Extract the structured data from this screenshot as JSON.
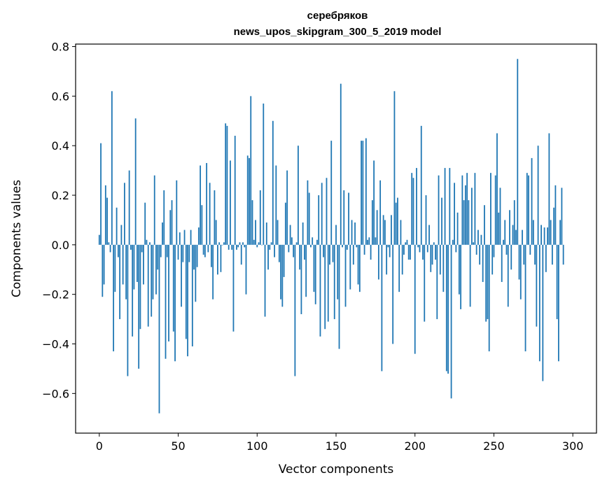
{
  "chart_data": {
    "type": "bar",
    "title": "серебряков",
    "subtitle": "news_upos_skipgram_300_5_2019 model",
    "xlabel": "Vector components",
    "ylabel": "Components values",
    "xlim": [
      -15,
      315
    ],
    "ylim": [
      -0.76,
      0.81
    ],
    "xticks": [
      0,
      50,
      100,
      150,
      200,
      250,
      300
    ],
    "xtick_labels": [
      "0",
      "50",
      "100",
      "150",
      "200",
      "250",
      "300"
    ],
    "yticks": [
      -0.6,
      -0.4,
      -0.2,
      0.0,
      0.2,
      0.4,
      0.6,
      0.8
    ],
    "ytick_labels": [
      "−0.6",
      "−0.4",
      "−0.2",
      "0.0",
      "0.2",
      "0.4",
      "0.6",
      "0.8"
    ],
    "grid": false,
    "bar_color": "#1f77b4",
    "values": [
      0.04,
      0.41,
      -0.21,
      -0.16,
      0.24,
      0.19,
      0.01,
      -0.03,
      0.62,
      -0.43,
      -0.19,
      0.15,
      -0.05,
      -0.3,
      0.08,
      -0.16,
      0.25,
      -0.22,
      -0.53,
      0.3,
      -0.02,
      -0.37,
      -0.18,
      0.51,
      -0.15,
      -0.5,
      -0.34,
      -0.03,
      -0.16,
      0.17,
      0.02,
      -0.33,
      0.01,
      -0.29,
      -0.22,
      0.28,
      -0.2,
      -0.1,
      -0.68,
      -0.05,
      0.09,
      0.22,
      -0.46,
      -0.05,
      -0.39,
      0.14,
      0.18,
      -0.35,
      -0.47,
      0.26,
      -0.06,
      0.05,
      -0.25,
      -0.07,
      0.06,
      -0.38,
      -0.45,
      -0.07,
      0.06,
      -0.41,
      -0.1,
      -0.23,
      -0.09,
      0.07,
      0.32,
      0.16,
      -0.04,
      -0.05,
      0.33,
      -0.03,
      0.25,
      -0.09,
      -0.22,
      0.22,
      0.1,
      -0.12,
      0.01,
      -0.11,
      0.0,
      0.01,
      0.49,
      0.48,
      -0.02,
      0.34,
      -0.02,
      -0.35,
      0.44,
      -0.02,
      -0.01,
      0.01,
      -0.08,
      0.01,
      -0.01,
      -0.2,
      0.36,
      0.35,
      0.6,
      0.18,
      0.02,
      0.1,
      -0.01,
      0.01,
      0.22,
      0.0,
      0.57,
      -0.29,
      0.09,
      -0.1,
      -0.02,
      0.01,
      0.5,
      -0.05,
      0.32,
      0.1,
      -0.07,
      -0.22,
      -0.25,
      -0.13,
      0.17,
      0.3,
      -0.03,
      0.08,
      0.03,
      -0.05,
      -0.53,
      0.01,
      0.4,
      -0.1,
      -0.28,
      0.09,
      -0.06,
      -0.21,
      0.26,
      0.21,
      -0.01,
      0.03,
      -0.19,
      -0.24,
      0.02,
      0.2,
      -0.37,
      0.25,
      -0.05,
      -0.34,
      0.27,
      -0.31,
      -0.08,
      0.42,
      -0.07,
      -0.3,
      0.08,
      -0.22,
      -0.42,
      0.65,
      -0.01,
      0.22,
      -0.25,
      -0.02,
      0.21,
      -0.18,
      0.1,
      -0.08,
      0.09,
      -0.01,
      -0.16,
      -0.19,
      0.42,
      0.42,
      -0.04,
      0.43,
      0.02,
      0.03,
      -0.06,
      0.18,
      0.34,
      0.03,
      0.14,
      -0.14,
      0.26,
      -0.51,
      0.12,
      0.1,
      -0.12,
      -0.01,
      -0.05,
      0.12,
      -0.4,
      0.62,
      0.17,
      0.19,
      -0.19,
      0.1,
      -0.12,
      -0.04,
      0.01,
      0.02,
      -0.06,
      -0.06,
      0.29,
      0.27,
      -0.44,
      0.31,
      -0.01,
      -0.03,
      0.48,
      -0.06,
      -0.31,
      0.2,
      -0.03,
      0.08,
      -0.11,
      -0.08,
      0.01,
      -0.06,
      -0.3,
      0.28,
      -0.12,
      0.19,
      -0.19,
      0.31,
      -0.51,
      -0.52,
      0.31,
      -0.62,
      0.02,
      0.25,
      -0.03,
      0.13,
      -0.2,
      -0.26,
      0.28,
      0.18,
      0.24,
      0.29,
      0.18,
      -0.25,
      0.23,
      0.01,
      0.29,
      -0.04,
      0.06,
      -0.08,
      0.04,
      -0.15,
      0.16,
      -0.31,
      -0.3,
      -0.43,
      0.29,
      -0.12,
      -0.05,
      0.28,
      0.45,
      0.13,
      0.23,
      -0.15,
      0.02,
      0.1,
      -0.04,
      -0.25,
      0.14,
      -0.1,
      0.08,
      0.18,
      0.06,
      0.75,
      -0.14,
      -0.22,
      0.06,
      -0.08,
      -0.43,
      0.29,
      0.28,
      -0.04,
      0.35,
      0.1,
      -0.08,
      -0.33,
      0.4,
      -0.47,
      0.08,
      -0.55,
      0.07,
      -0.11,
      0.07,
      0.45,
      0.1,
      -0.08,
      0.15,
      0.24,
      -0.3,
      -0.47,
      0.1,
      0.23,
      -0.08
    ]
  }
}
